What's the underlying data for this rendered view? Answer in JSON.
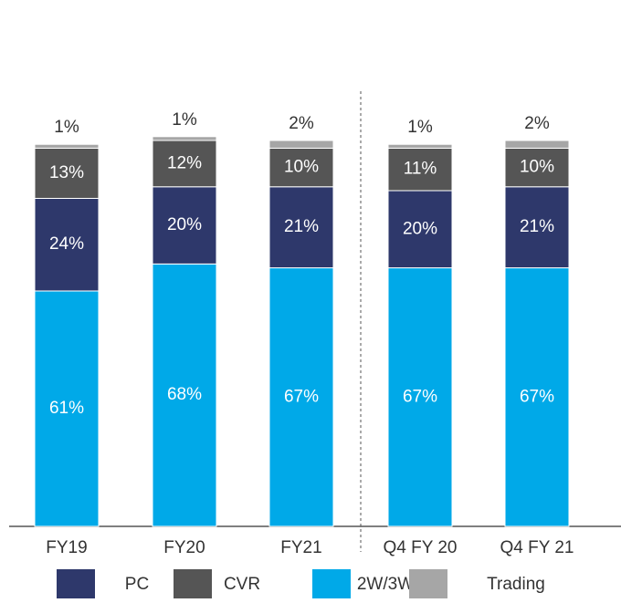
{
  "chart_data": {
    "type": "stacked_bar",
    "categories": [
      "FY19",
      "FY20",
      "FY21",
      "Q4 FY 20",
      "Q4 FY 21"
    ],
    "series": [
      {
        "name": "2W/3W",
        "color": "#00a9e8",
        "values": [
          61,
          68,
          67,
          67,
          67
        ],
        "value_labels": [
          "61%",
          "68%",
          "67%",
          "67%",
          "67%"
        ]
      },
      {
        "name": "PC",
        "color": "#2e386b",
        "values": [
          24,
          20,
          21,
          20,
          21
        ],
        "value_labels": [
          "24%",
          "20%",
          "21%",
          "20%",
          "21%"
        ]
      },
      {
        "name": "CVR",
        "color": "#555555",
        "values": [
          13,
          12,
          10,
          11,
          10
        ],
        "value_labels": [
          "13%",
          "12%",
          "10%",
          "11%",
          "10%"
        ]
      },
      {
        "name": "Trading",
        "color": "#a6a6a6",
        "values": [
          1,
          1,
          2,
          1,
          2
        ],
        "value_labels": [
          "1%",
          "1%",
          "2%",
          "1%",
          "2%"
        ]
      }
    ]
  }
}
